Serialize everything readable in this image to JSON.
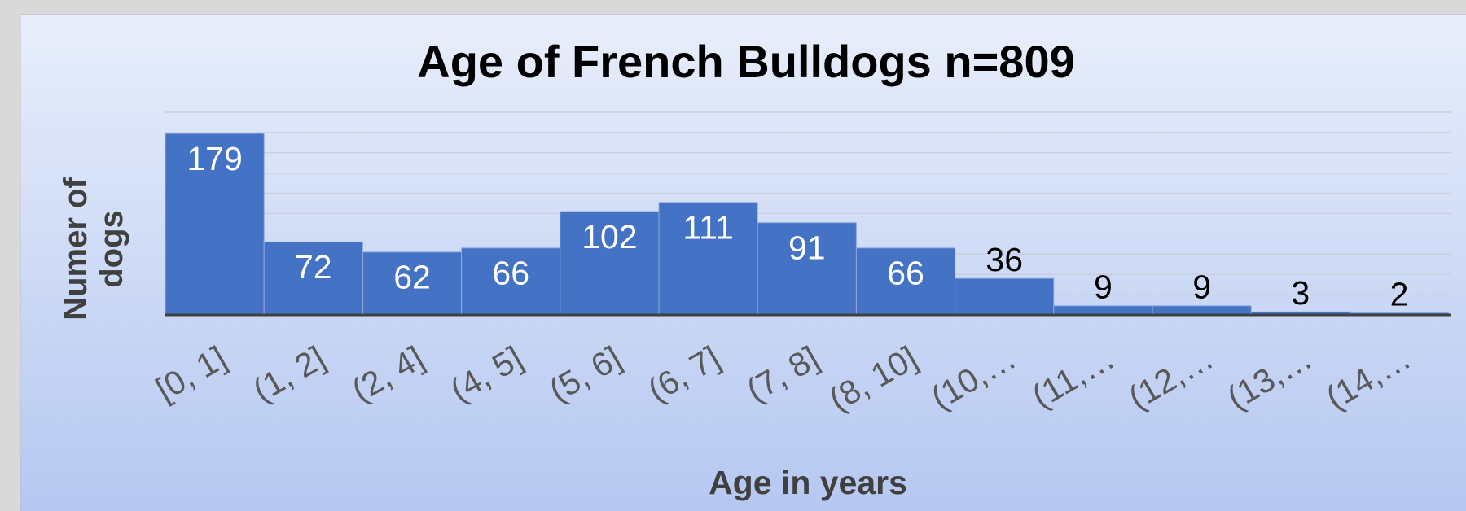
{
  "chart_data": {
    "type": "bar",
    "title": "Age of French Bulldogs n=809",
    "x_label": "Age in years",
    "y_label": "Numer of dogs",
    "categories": [
      "[0, 1]",
      "(1, 2]",
      "(2, 4]",
      "(4, 5]",
      "(5, 6]",
      "(6, 7]",
      "(7, 8]",
      "(8, 10]",
      "(10,…",
      "(11,…",
      "(12,…",
      "(13,…",
      "(14,…"
    ],
    "values": [
      179,
      72,
      62,
      66,
      102,
      111,
      91,
      66,
      36,
      9,
      9,
      3,
      2
    ],
    "color": "#4472c4",
    "ylim": [
      0,
      200
    ],
    "yticks": [
      0,
      20,
      40,
      60,
      80,
      100,
      120,
      140,
      160,
      180,
      200
    ],
    "grid": true
  }
}
